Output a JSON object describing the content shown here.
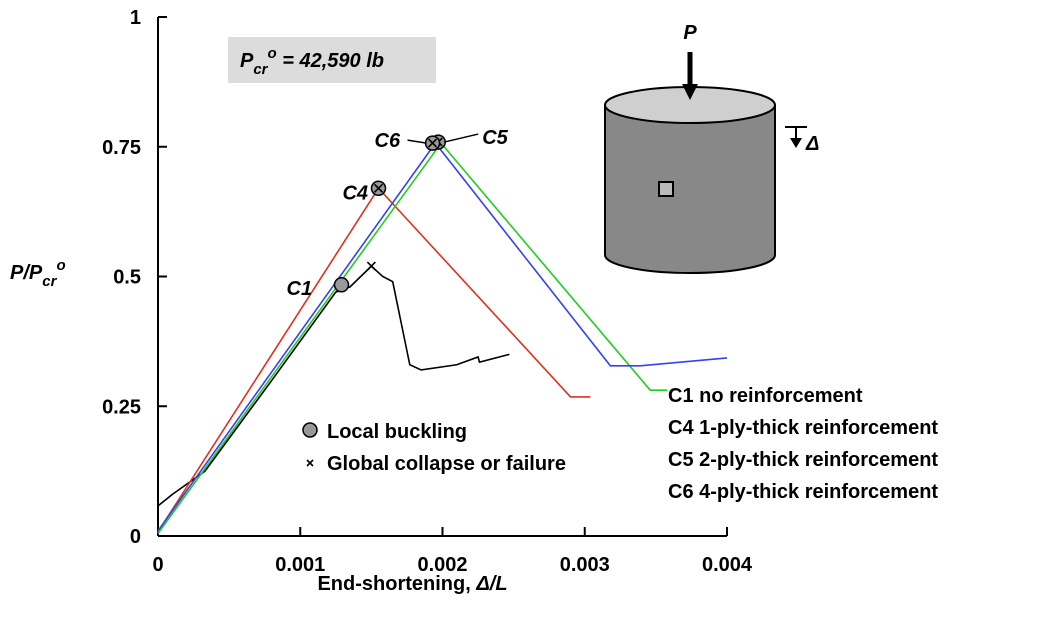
{
  "chart_data": {
    "type": "line",
    "annotation": {
      "parts": [
        "P",
        "cr",
        "o",
        " = 42,590 lb"
      ]
    },
    "y_label": {
      "parts": [
        "P/P",
        "cr",
        "o"
      ]
    },
    "x_label": {
      "parts": [
        "End-shortening, ",
        "Δ/L"
      ]
    },
    "xlim": [
      0,
      0.004
    ],
    "ylim": [
      0,
      1
    ],
    "xticks": [
      0,
      0.001,
      0.002,
      0.003,
      0.004
    ],
    "yticks": [
      0,
      0.25,
      0.5,
      0.75,
      1
    ],
    "marker_legend": {
      "buckling": "Local buckling",
      "collapse": "Global collapse or failure"
    },
    "diagram": {
      "load_label": "P",
      "shortening_label": "Δ"
    },
    "series": [
      {
        "name": "C1 no reinforcement",
        "label": "C1",
        "color": "#000000",
        "x": [
          0,
          0.0001,
          0.00033,
          0.0008,
          0.00125,
          0.00135,
          0.0015,
          0.00158,
          0.00165,
          0.00177,
          0.00185,
          0.0021,
          0.00225,
          0.00226,
          0.00247
        ],
        "values": [
          0.058,
          0.08,
          0.125,
          0.3,
          0.47,
          0.48,
          0.52,
          0.5,
          0.49,
          0.33,
          0.32,
          0.33,
          0.345,
          0.335,
          0.35
        ],
        "buckling": [
          0.00129,
          0.484
        ],
        "collapse": [
          0.0015,
          0.52
        ]
      },
      {
        "name": "C4 1-ply-thick reinforcement",
        "label": "C4",
        "color": "#e0301e",
        "x": [
          0,
          0.00155,
          0.0029,
          0.00304
        ],
        "values": [
          0.008,
          0.67,
          0.268,
          0.268
        ],
        "buckling": [
          0.00155,
          0.67
        ],
        "collapse": [
          0.00155,
          0.67
        ]
      },
      {
        "name": "C5 2-ply-thick reinforcement",
        "label": "C5",
        "color": "#22cc22",
        "x": [
          0,
          0.00199,
          0.00346,
          0.00358
        ],
        "values": [
          0.005,
          0.757,
          0.281,
          0.281
        ],
        "buckling": [
          0.00197,
          0.759
        ],
        "collapse": [
          0.00197,
          0.759
        ]
      },
      {
        "name": "C6 4-ply-thick reinforcement",
        "label": "C6",
        "color": "#3344ee",
        "x": [
          0,
          0.00195,
          0.00318,
          0.00339,
          0.004
        ],
        "values": [
          0.01,
          0.757,
          0.328,
          0.328,
          0.343
        ],
        "buckling": [
          0.00193,
          0.757
        ],
        "collapse": [
          0.00193,
          0.757
        ]
      }
    ]
  }
}
